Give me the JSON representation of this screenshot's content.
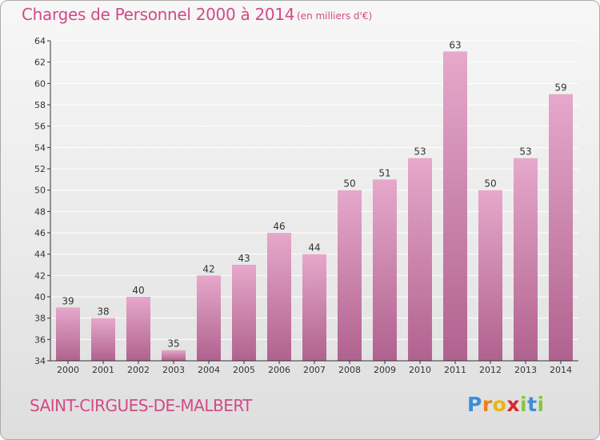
{
  "header": {
    "title": "Charges de Personnel 2000 à 2014",
    "subtitle": "(en milliers d'€)"
  },
  "footer": {
    "commune": "SAINT-CIRGUES-DE-MALBERT",
    "logo": "Proxiti"
  },
  "logo_letters": [
    {
      "ch": "P",
      "color": "#3a8fd6"
    },
    {
      "ch": "r",
      "color": "#f07e16"
    },
    {
      "ch": "o",
      "color": "#e8b415"
    },
    {
      "ch": "x",
      "color": "#d9272b"
    },
    {
      "ch": "i",
      "color": "#8bc43f"
    },
    {
      "ch": "t",
      "color": "#3a8fd6"
    },
    {
      "ch": "i",
      "color": "#8bc43f"
    }
  ],
  "colors": {
    "accent": "#d24a86",
    "bar_top": "#e6a8cb",
    "bar_bottom": "#b0628e",
    "grid": "#ffffff",
    "axis": "#333333"
  },
  "chart_data": {
    "type": "bar",
    "title": "Charges de Personnel 2000 à 2014",
    "subtitle": "(en milliers d'€)",
    "categories": [
      "2000",
      "2001",
      "2002",
      "2003",
      "2004",
      "2005",
      "2006",
      "2007",
      "2008",
      "2009",
      "2010",
      "2011",
      "2012",
      "2013",
      "2014"
    ],
    "values": [
      39,
      38,
      40,
      35,
      42,
      43,
      46,
      44,
      50,
      51,
      53,
      63,
      50,
      53,
      59
    ],
    "ylim": [
      34,
      64
    ],
    "yticks": [
      34,
      36,
      38,
      40,
      42,
      44,
      46,
      48,
      50,
      52,
      54,
      56,
      58,
      60,
      62,
      64
    ],
    "grid": true,
    "legend": "none"
  }
}
